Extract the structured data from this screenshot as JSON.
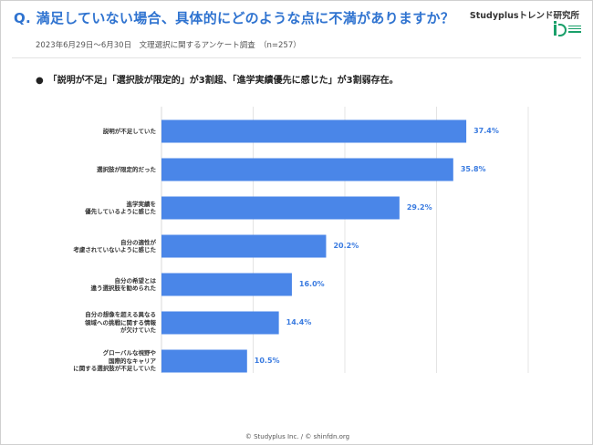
{
  "header": {
    "question": "Q. 満足していない場合、具体的にどのような点に不満がありますか？",
    "brand": "Studyplusトレンド研究所",
    "subtitle": "2023年6月29日〜6月30日　文理選択に関するアンケート調査　（n=257）",
    "bullet": "●　「説明が不足」「選択肢が限定的」が3割超、「進学実績優先に感じた」が3割弱存在。"
  },
  "footer": {
    "text": "© Studyplus Inc.  /  © shinfdn.org"
  },
  "colors": {
    "bar": "#4a86e8",
    "value_label": "#3a7be0",
    "grid": "#d9d9d9",
    "title": "#2f73d0"
  },
  "chart_data": {
    "type": "bar",
    "orientation": "horizontal",
    "categories": [
      "説明が不足していた",
      "選択肢が限定的だった",
      "進学実績を\n優先しているように感じた",
      "自分の適性が\n考慮されていないように感じた",
      "自分の希望とは\n違う選択肢を勧められた",
      "自分の想像を超える異なる\n領域への挑戦に関する情報\nが欠けていた",
      "グローバルな視野や\n国際的なキャリア\nに関する選択肢が不足していた"
    ],
    "values": [
      37.4,
      35.8,
      29.2,
      20.2,
      16.0,
      14.4,
      10.5
    ],
    "value_labels": [
      "37.4%",
      "35.8%",
      "29.2%",
      "20.2%",
      "16.0%",
      "14.4%",
      "10.5%"
    ],
    "xlim": [
      0,
      45
    ],
    "grid": true
  }
}
